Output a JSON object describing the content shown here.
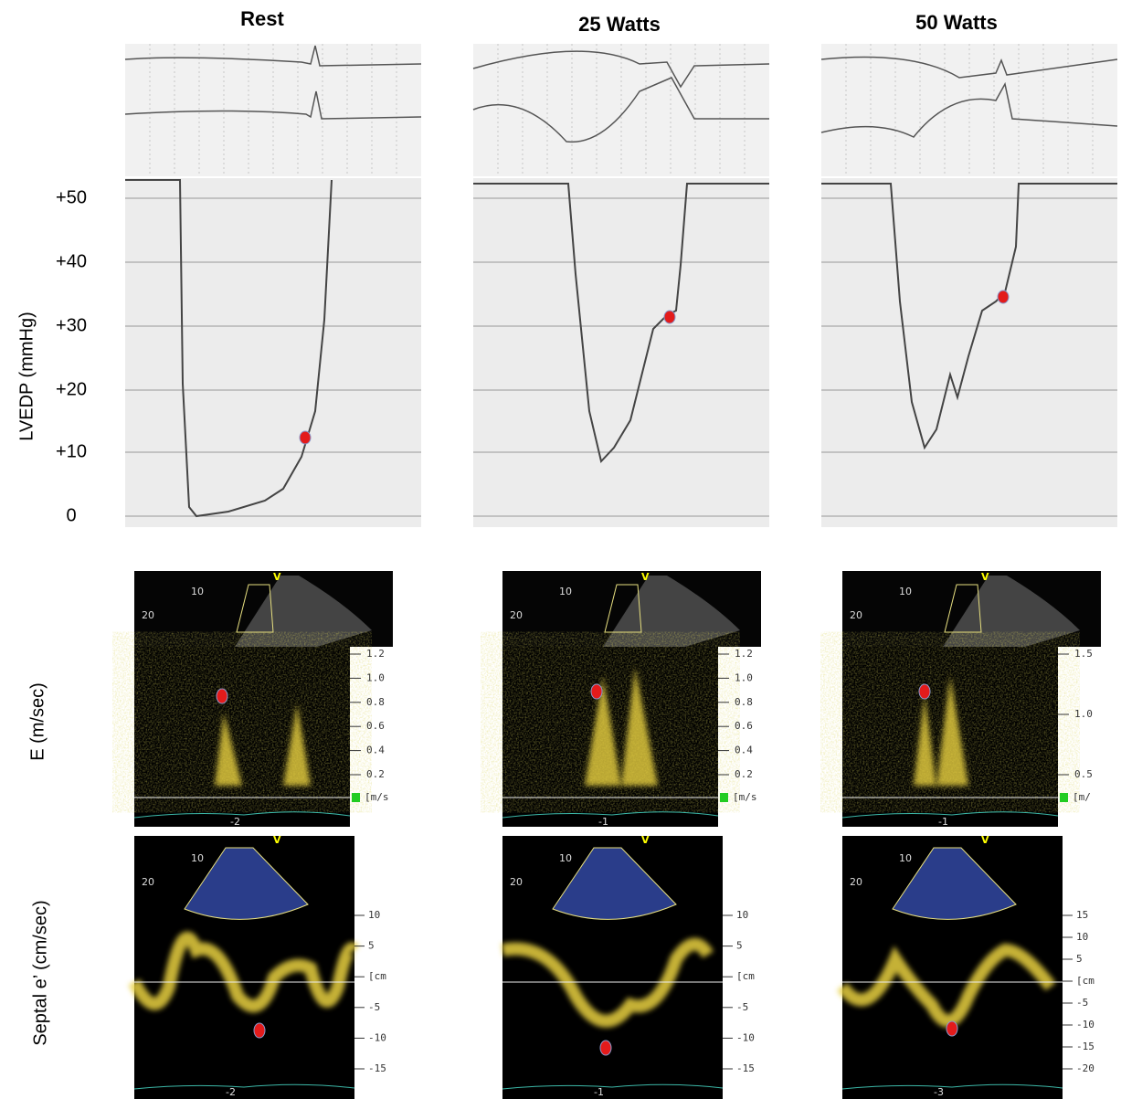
{
  "columns": [
    "Rest",
    "25 Watts",
    "50 Watts"
  ],
  "row_labels": [
    "LVEDP (mmHg)",
    "E (m/sec)",
    "Septal e’ (cm/sec)"
  ],
  "lvedp_ticks": [
    "+50",
    "+40",
    "+30",
    "+20",
    "+10",
    "0"
  ],
  "sector_labels": [
    "10",
    "20",
    "V"
  ],
  "panels": [
    {
      "e_scale": [
        "1.2",
        "1.0",
        "0.8",
        "0.6",
        "0.4",
        "0.2"
      ],
      "e_unit": "[m/s",
      "e_time": "-2",
      "s_scale": [
        "10",
        "5",
        "[cm",
        "-5",
        "-10",
        "-15"
      ],
      "s_time": "-2"
    },
    {
      "e_scale": [
        "1.2",
        "1.0",
        "0.8",
        "0.6",
        "0.4",
        "0.2"
      ],
      "e_unit": "[m/s",
      "e_time": "-1",
      "s_scale": [
        "10",
        "5",
        "[cm",
        "-5",
        "-10",
        "-15"
      ],
      "s_time": "-1"
    },
    {
      "e_scale": [
        "1.5",
        "1.0",
        "0.5"
      ],
      "e_unit": "[m/",
      "e_time": "-1",
      "s_scale": [
        "15",
        "10",
        "5",
        "[cm",
        "-5",
        "-10",
        "-15",
        "-20"
      ],
      "s_time": "-3"
    }
  ]
}
